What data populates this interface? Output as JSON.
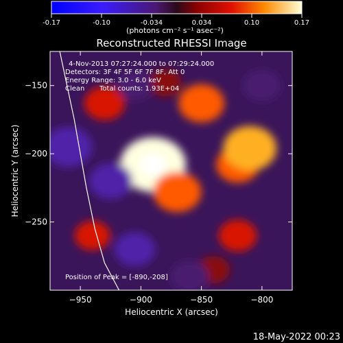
{
  "colorbar": {
    "ticks": [
      "-0.17",
      "-0.10",
      "-0.034",
      "0.034",
      "0.10",
      "0.17"
    ],
    "units": "(photons cm⁻² s⁻¹ asec⁻²)"
  },
  "title": "Reconstructed RHESSI Image",
  "annotations": {
    "time_range": "4-Nov-2013 07:27:24.000 to 07:29:24.000",
    "detectors": "Detectors: 3F 4F 5F 6F 7F 8F, Att 0",
    "energy": "Energy Range: 3.0 - 6.0 keV",
    "clean": "Clean",
    "total_counts": "Total counts: 1.93E+04",
    "peak": "Position of Peak = [-890,-208]"
  },
  "footer_timestamp": "18-May-2022 00:23",
  "chart_data": {
    "type": "heatmap",
    "title": "Reconstructed RHESSI Image",
    "xlabel": "Heliocentric X (arcsec)",
    "ylabel": "Heliocentric Y (arcsec)",
    "xlim": [
      -975,
      -775
    ],
    "ylim": [
      -300,
      -125
    ],
    "x_ticks": [
      -950,
      -900,
      -850,
      -800
    ],
    "y_ticks": [
      -250,
      -200,
      -150
    ],
    "x_tick_labels": [
      "−950",
      "−900",
      "−850",
      "−800"
    ],
    "y_tick_labels": [
      "−250",
      "−200",
      "−150"
    ],
    "colorbar_range": [
      -0.17,
      0.17
    ],
    "peak": {
      "x": -890,
      "y": -208
    },
    "features": [
      {
        "x": -890,
        "y": -208,
        "value": 0.17
      },
      {
        "x": -870,
        "y": -228,
        "value": 0.1
      },
      {
        "x": -820,
        "y": -208,
        "value": 0.08
      },
      {
        "x": -810,
        "y": -196,
        "value": 0.12
      },
      {
        "x": -850,
        "y": -163,
        "value": 0.09
      },
      {
        "x": -930,
        "y": -163,
        "value": 0.07
      },
      {
        "x": -880,
        "y": -148,
        "value": 0.04
      },
      {
        "x": -940,
        "y": -260,
        "value": 0.05
      },
      {
        "x": -820,
        "y": -260,
        "value": 0.06
      },
      {
        "x": -840,
        "y": -285,
        "value": 0.04
      },
      {
        "x": -960,
        "y": -195,
        "value": -0.1
      },
      {
        "x": -925,
        "y": -220,
        "value": -0.08
      },
      {
        "x": -905,
        "y": -150,
        "value": -0.05
      },
      {
        "x": -800,
        "y": -150,
        "value": -0.06
      },
      {
        "x": -905,
        "y": -270,
        "value": -0.07
      },
      {
        "x": -860,
        "y": -290,
        "value": -0.06
      }
    ],
    "limb_curve": [
      [
        -967,
        -125
      ],
      [
        -955,
        -175
      ],
      [
        -945,
        -225
      ],
      [
        -938,
        -255
      ],
      [
        -930,
        -280
      ],
      [
        -918,
        -300
      ]
    ]
  }
}
